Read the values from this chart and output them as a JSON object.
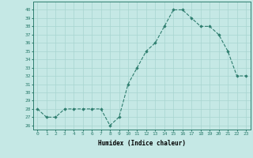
{
  "x": [
    0,
    1,
    2,
    3,
    4,
    5,
    6,
    7,
    8,
    9,
    10,
    11,
    12,
    13,
    14,
    15,
    16,
    17,
    18,
    19,
    20,
    21,
    22,
    23
  ],
  "y": [
    28,
    27,
    27,
    28,
    28,
    28,
    28,
    28,
    26,
    27,
    31,
    33,
    35,
    36,
    38,
    40,
    40,
    39,
    38,
    38,
    37,
    35,
    32,
    32
  ],
  "line_color": "#2e7d6e",
  "marker_color": "#2e7d6e",
  "bg_color": "#c5e8e5",
  "grid_color": "#a8d5d0",
  "xlabel": "Humidex (Indice chaleur)",
  "xlabel_fontsize": 5.5,
  "ylabel_ticks": [
    26,
    27,
    28,
    29,
    30,
    31,
    32,
    33,
    34,
    35,
    36,
    37,
    38,
    39,
    40
  ],
  "ylim": [
    25.5,
    41.0
  ],
  "xlim": [
    -0.5,
    23.5
  ],
  "tick_fontsize": 4.5
}
